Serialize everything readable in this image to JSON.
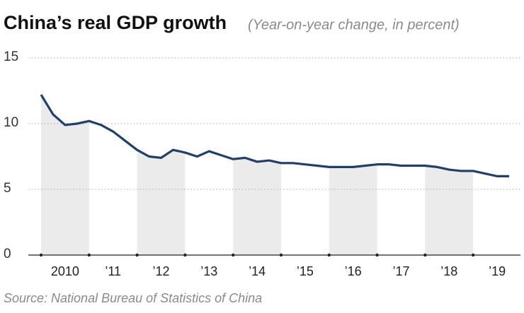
{
  "chart_data": {
    "type": "line",
    "title": "China’s real GDP growth",
    "subtitle": "(Year-on-year change, in percent)",
    "source": "Source: National Bureau of Statistics of China",
    "categories": [
      "2010",
      null,
      null,
      null,
      "’11",
      null,
      null,
      null,
      "’12",
      null,
      null,
      null,
      "’13",
      null,
      null,
      null,
      "’14",
      null,
      null,
      null,
      "’15",
      null,
      null,
      null,
      "’16",
      null,
      null,
      null,
      "’17",
      null,
      null,
      null,
      "’18",
      null,
      null,
      null,
      "’19",
      null,
      null,
      null
    ],
    "series": [
      {
        "name": "Real GDP growth",
        "color": "#1f3f6e",
        "values": [
          12.2,
          10.7,
          9.9,
          10.0,
          10.2,
          9.9,
          9.4,
          8.7,
          8.0,
          7.5,
          7.4,
          8.0,
          7.8,
          7.5,
          7.9,
          7.6,
          7.3,
          7.4,
          7.1,
          7.2,
          7.0,
          7.0,
          6.9,
          6.8,
          6.7,
          6.7,
          6.7,
          6.8,
          6.9,
          6.9,
          6.8,
          6.8,
          6.8,
          6.7,
          6.5,
          6.4,
          6.4,
          6.2,
          6.0,
          6.0
        ]
      }
    ],
    "ylim": [
      0,
      15
    ],
    "yticks": [
      0,
      5,
      10,
      15
    ],
    "grid": true
  }
}
